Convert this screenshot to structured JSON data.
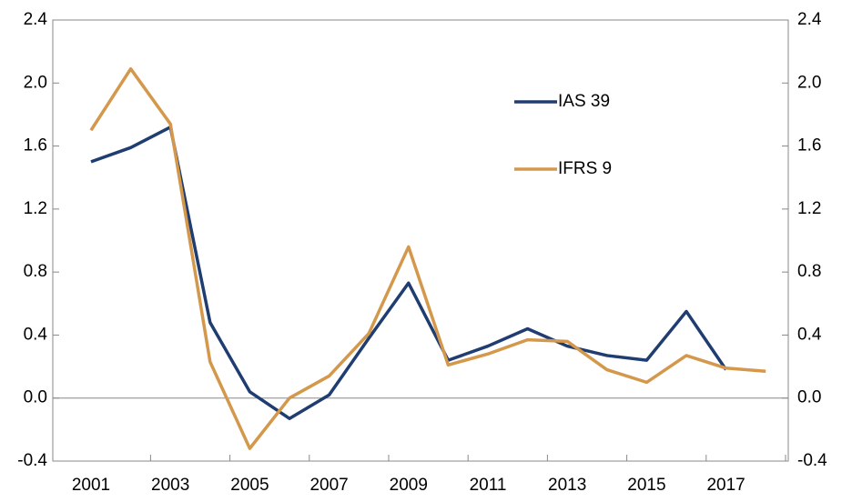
{
  "chart_data": {
    "type": "line",
    "categories": [
      "2001",
      null,
      "2003",
      null,
      "2005",
      null,
      "2007",
      null,
      "2009",
      null,
      "2011",
      null,
      "2013",
      null,
      "2015",
      null,
      "2017",
      null
    ],
    "series": [
      {
        "name": "IAS 39",
        "color": "#1f3d70",
        "values": [
          1.5,
          1.59,
          1.72,
          0.48,
          0.04,
          -0.13,
          0.02,
          0.38,
          0.73,
          0.24,
          0.33,
          0.44,
          0.33,
          0.27,
          0.24,
          0.55,
          0.18,
          null
        ]
      },
      {
        "name": "IFRS 9",
        "color": "#d4984d",
        "values": [
          1.7,
          2.09,
          1.74,
          0.23,
          -0.32,
          0.0,
          0.14,
          0.41,
          0.96,
          0.21,
          0.28,
          0.37,
          0.36,
          0.18,
          0.1,
          0.27,
          0.19,
          0.17
        ]
      }
    ],
    "ylim": [
      -0.4,
      2.4
    ],
    "yticks": [
      {
        "value": -0.4,
        "label": "-0.4"
      },
      {
        "value": 0,
        "label": "0.0"
      },
      {
        "value": 0.4,
        "label": "0.4"
      },
      {
        "value": 0.8,
        "label": "0.8"
      },
      {
        "value": 1.2,
        "label": "1.2"
      },
      {
        "value": 1.6,
        "label": "1.6"
      },
      {
        "value": 2,
        "label": "2.0"
      },
      {
        "value": 2.4,
        "label": "2.4"
      }
    ],
    "y2lim": [
      -0.4,
      2.4
    ],
    "y2ticks": [
      {
        "value": -0.4,
        "label": "-0.4"
      },
      {
        "value": 0,
        "label": "0.0"
      },
      {
        "value": 0.4,
        "label": "0.4"
      },
      {
        "value": 0.8,
        "label": "0.8"
      },
      {
        "value": 1.2,
        "label": "1.2"
      },
      {
        "value": 1.6,
        "label": "1.6"
      },
      {
        "value": 2,
        "label": "2.0"
      },
      {
        "value": 2.4,
        "label": "2.4"
      }
    ]
  }
}
